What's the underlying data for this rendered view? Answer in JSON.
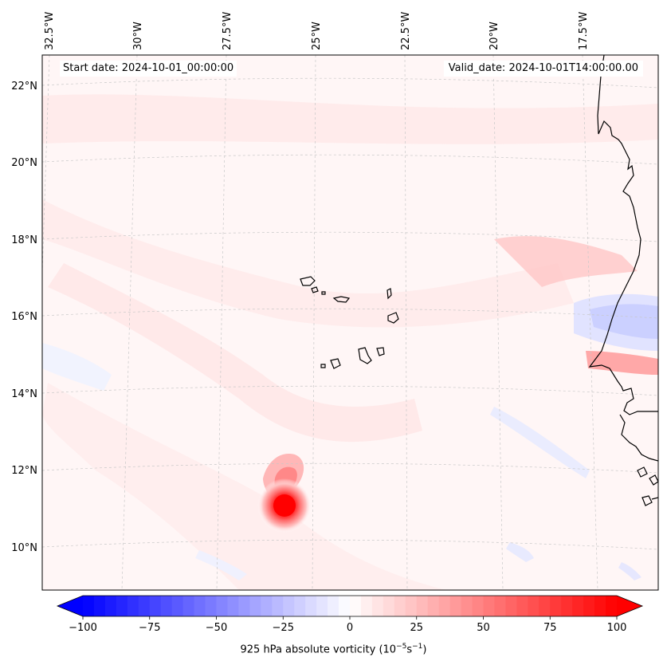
{
  "map": {
    "start_label": "Start date: 2024-10-01_00:00:00",
    "valid_label": "Valid_date: 2024-10-01T14:00:00.00",
    "lon_labels": [
      "32.5°W",
      "30°W",
      "27.5°W",
      "25°W",
      "22.5°W",
      "20°W",
      "17.5°W"
    ],
    "lat_labels": [
      "22°N",
      "20°N",
      "18°N",
      "16°N",
      "14°N",
      "12°N",
      "10°N"
    ],
    "vortex_center": {
      "lon": "25.3°W",
      "lat": "11.1°N"
    }
  },
  "colorbar": {
    "min": -100,
    "max": 100,
    "levels": 48,
    "tick_labels": [
      "−100",
      "−75",
      "−50",
      "−25",
      "0",
      "25",
      "50",
      "75",
      "100"
    ],
    "label_text": "925 hPa absolute vorticity (10",
    "label_exp1": "−5",
    "label_mid": "s",
    "label_exp2": "−1",
    "label_end": ")",
    "colors": {
      "low": "#0000ff",
      "mid": "#ffffff",
      "high": "#ff0000"
    }
  }
}
